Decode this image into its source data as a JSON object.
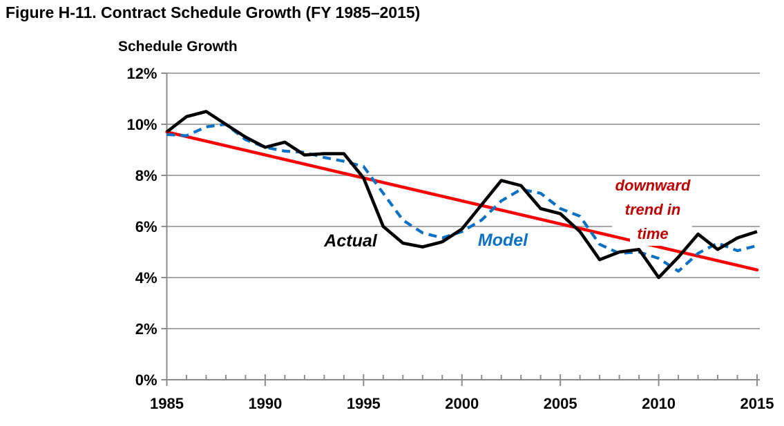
{
  "figure_title": "Figure H-11. Contract Schedule Growth (FY 1985–2015)",
  "y_axis_title": "Schedule Growth",
  "labels": {
    "actual": "Actual",
    "model": "Model",
    "annotation_lines": [
      "downward",
      "trend in",
      "time"
    ],
    "annotation_color": "#C00000"
  },
  "chart_data": {
    "type": "line",
    "title": "Figure H-11. Contract Schedule Growth (FY 1985–2015)",
    "ylabel": "Schedule Growth",
    "xlim": [
      1985,
      2015
    ],
    "ylim": [
      0,
      12
    ],
    "grid": "horizontal",
    "grid_color": "#A6A6A6",
    "axis_color": "#8C8C8C",
    "x": [
      1985,
      1986,
      1987,
      1988,
      1989,
      1990,
      1991,
      1992,
      1993,
      1994,
      1995,
      1996,
      1997,
      1998,
      1999,
      2000,
      2001,
      2002,
      2003,
      2004,
      2005,
      2006,
      2007,
      2008,
      2009,
      2010,
      2011,
      2012,
      2013,
      2014,
      2015
    ],
    "series": [
      {
        "name": "Actual",
        "color": "#000000",
        "style": "solid",
        "values": [
          9.7,
          10.3,
          10.5,
          10.0,
          9.5,
          9.1,
          9.3,
          8.8,
          8.85,
          8.85,
          7.9,
          6.0,
          5.35,
          5.2,
          5.4,
          5.9,
          6.85,
          7.8,
          7.6,
          6.7,
          6.5,
          5.8,
          4.7,
          5.0,
          5.1,
          4.0,
          4.8,
          5.7,
          5.1,
          5.55,
          5.8
        ]
      },
      {
        "name": "Model",
        "color": "#0C71C3",
        "style": "dashed",
        "values": [
          9.6,
          9.55,
          9.9,
          10.0,
          9.4,
          9.1,
          8.95,
          8.9,
          8.7,
          8.55,
          8.35,
          7.3,
          6.25,
          5.75,
          5.55,
          5.8,
          6.25,
          7.0,
          7.45,
          7.3,
          6.7,
          6.4,
          5.3,
          4.95,
          5.0,
          4.75,
          4.25,
          4.95,
          5.35,
          5.05,
          5.25
        ]
      }
    ],
    "trend_line": {
      "name": "downward trend in time",
      "color": "#FF0000",
      "start_year": 1985,
      "start_value": 9.7,
      "end_year": 2015,
      "end_value": 4.3
    },
    "y_ticks": [
      {
        "value": 12,
        "label": "12%"
      },
      {
        "value": 10,
        "label": "10%"
      },
      {
        "value": 8,
        "label": "8%"
      },
      {
        "value": 6,
        "label": "6%"
      },
      {
        "value": 4,
        "label": "4%"
      },
      {
        "value": 2,
        "label": "2%"
      },
      {
        "value": 0,
        "label": "0%"
      }
    ],
    "x_ticks": [
      {
        "value": 1985,
        "label": "1985"
      },
      {
        "value": 1990,
        "label": "1990"
      },
      {
        "value": 1995,
        "label": "1995"
      },
      {
        "value": 2000,
        "label": "2000"
      },
      {
        "value": 2005,
        "label": "2005"
      },
      {
        "value": 2010,
        "label": "2010"
      },
      {
        "value": 2015,
        "label": "2015"
      }
    ]
  }
}
